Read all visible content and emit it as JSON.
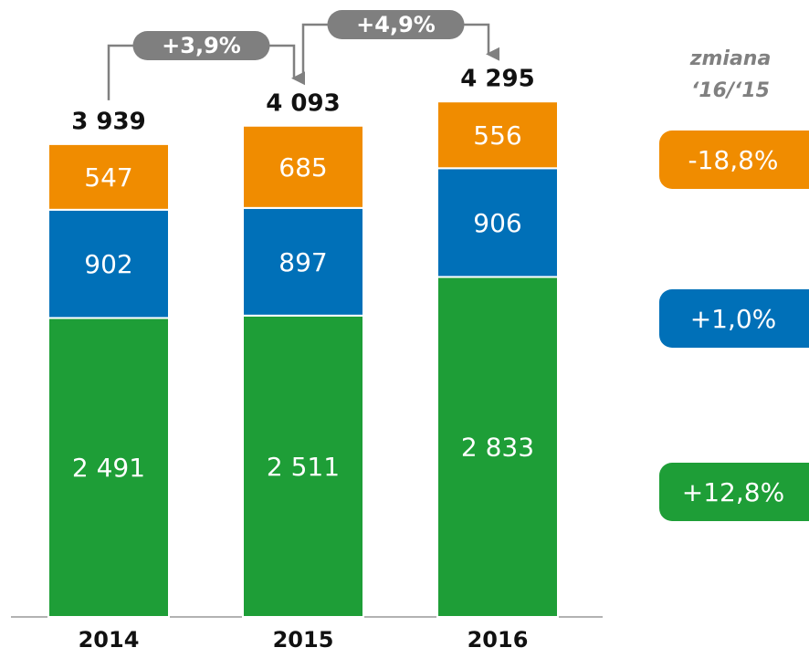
{
  "chart_data": {
    "type": "stacked_bar",
    "categories": [
      "2014",
      "2015",
      "2016"
    ],
    "series": [
      {
        "color": "#1e9e37",
        "values": [
          2491,
          2511,
          2833
        ],
        "value_labels": [
          "2 491",
          "2 511",
          "2 833"
        ],
        "change": "+12,8%"
      },
      {
        "color": "#0070b8",
        "values": [
          902,
          897,
          906
        ],
        "value_labels": [
          "902",
          "897",
          "906"
        ],
        "change": "+1,0%"
      },
      {
        "color": "#f08c00",
        "values": [
          547,
          685,
          556
        ],
        "value_labels": [
          "547",
          "685",
          "556"
        ],
        "change": "-18,8%"
      }
    ],
    "totals": [
      3939,
      4093,
      4295
    ],
    "total_labels": [
      "3 939",
      "4 093",
      "4 295"
    ],
    "growth_annotations": [
      "+3,9%",
      "+4,9%"
    ],
    "change_header": [
      "zmiana",
      "‘16/‘15"
    ]
  }
}
